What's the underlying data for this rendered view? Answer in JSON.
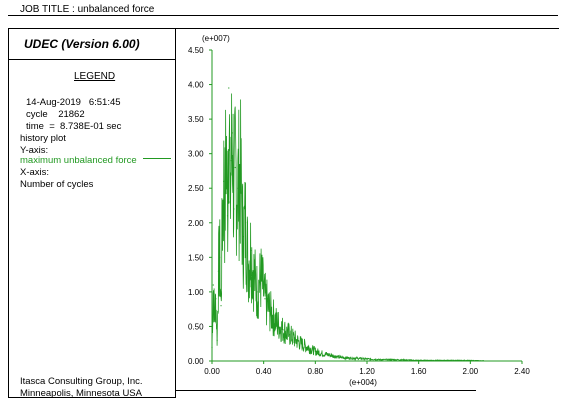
{
  "header": {
    "job_title": "JOB TITLE :  unbalanced force"
  },
  "legend": {
    "version": "UDEC (Version 6.00)",
    "title": "LEGEND",
    "date": "14-Aug-2019   6:51:45",
    "cycle": "cycle    21862",
    "time": "time  =  8.738E-01 sec",
    "plot_type": "history plot",
    "y_axis_label": "Y-axis:",
    "y_series": "maximum unbalanced force",
    "x_axis_label": "X-axis:",
    "x_series": "Number of cycles"
  },
  "footer": {
    "company": "Itasca Consulting Group, Inc.",
    "location": "Minneapolis, Minnesota  USA"
  },
  "colors": {
    "series": "#229922"
  },
  "chart_data": {
    "type": "line",
    "y_scale_label": "(e+007)",
    "x_scale_label": "(e+004)",
    "xlim": [
      0.0,
      2.4
    ],
    "ylim": [
      0.0,
      4.5
    ],
    "xticks": [
      "0.00",
      "0.40",
      "0.80",
      "1.20",
      "1.60",
      "2.00",
      "2.40"
    ],
    "yticks": [
      "0.00",
      "0.50",
      "1.00",
      "1.50",
      "2.00",
      "2.50",
      "3.00",
      "3.50",
      "4.00",
      "4.50"
    ],
    "series": [
      {
        "name": "maximum unbalanced force",
        "x": [
          0.0,
          0.01,
          0.02,
          0.03,
          0.04,
          0.05,
          0.06,
          0.07,
          0.08,
          0.09,
          0.1,
          0.11,
          0.12,
          0.13,
          0.14,
          0.15,
          0.16,
          0.17,
          0.18,
          0.2,
          0.22,
          0.24,
          0.26,
          0.28,
          0.3,
          0.32,
          0.35,
          0.38,
          0.41,
          0.44,
          0.47,
          0.5,
          0.55,
          0.6,
          0.65,
          0.7,
          0.75,
          0.8,
          0.85,
          0.9,
          0.95,
          1.0,
          1.1,
          1.2,
          1.3,
          1.4,
          1.5,
          1.6,
          1.7,
          1.8,
          1.9,
          2.0,
          2.1
        ],
        "y": [
          0.2,
          1.1,
          0.6,
          0.9,
          0.3,
          1.3,
          1.5,
          0.8,
          2.0,
          2.6,
          2.2,
          3.2,
          2.1,
          3.95,
          2.3,
          2.9,
          3.3,
          2.2,
          2.8,
          2.5,
          2.7,
          1.8,
          2.0,
          1.4,
          1.6,
          1.3,
          1.0,
          1.2,
          0.9,
          0.75,
          0.65,
          0.55,
          0.45,
          0.38,
          0.3,
          0.24,
          0.19,
          0.14,
          0.11,
          0.09,
          0.07,
          0.05,
          0.04,
          0.03,
          0.02,
          0.02,
          0.015,
          0.01,
          0.01,
          0.01,
          0.01,
          0.008,
          0.005
        ]
      }
    ]
  }
}
